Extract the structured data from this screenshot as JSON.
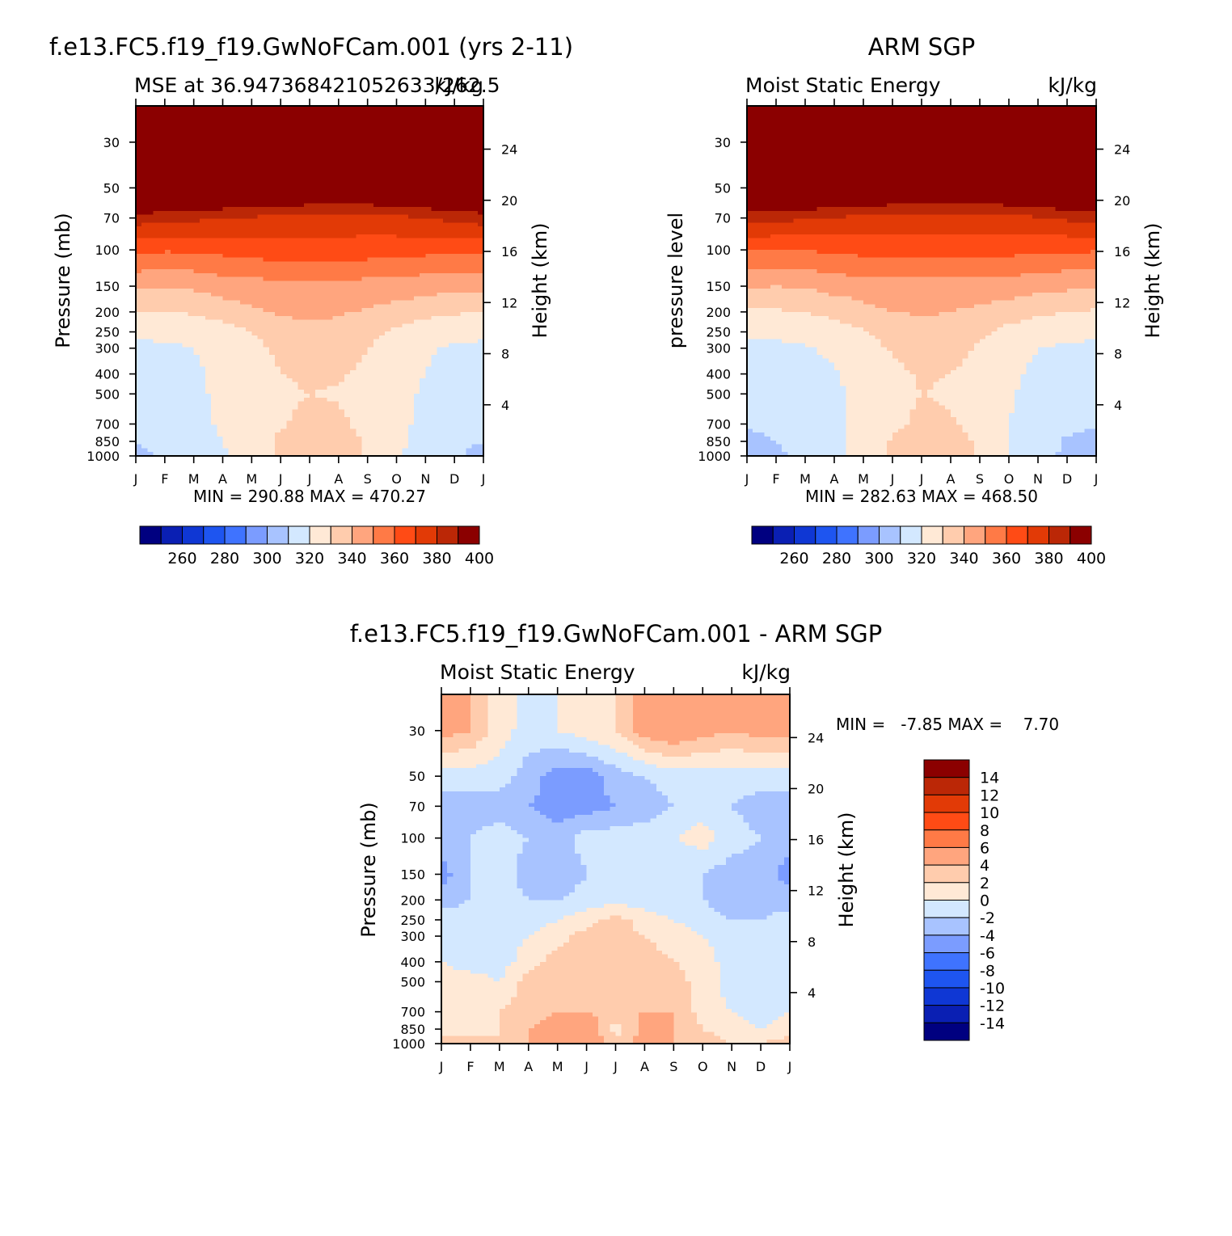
{
  "chart_data": [
    {
      "type": "heatmap",
      "title": "f.e13.FC5.f19_f19.GwNoFCam.001 (yrs 2-11)",
      "subtitle_left": "MSE at 36.947368421052633/262.5",
      "subtitle_right": "kJ/kg",
      "ylabel": "Pressure (mb)",
      "ylabel_right": "Height (km)",
      "x_ticks": [
        "J",
        "F",
        "M",
        "A",
        "M",
        "J",
        "J",
        "A",
        "S",
        "O",
        "N",
        "D",
        "J"
      ],
      "pressure_ticks": [
        30,
        50,
        70,
        100,
        150,
        200,
        250,
        300,
        400,
        500,
        700,
        850,
        1000
      ],
      "height_ticks": [
        24,
        20,
        16,
        12,
        8,
        4
      ],
      "ylim_mb": [
        1000,
        20
      ],
      "stats": "MIN = 290.88 MAX = 470.27",
      "min": 290.88,
      "max": 470.27,
      "levels_min": 250,
      "levels_step": 10,
      "colorbar_labels": [
        "260",
        "280",
        "300",
        "320",
        "340",
        "360",
        "380",
        "400"
      ],
      "grid": false,
      "values_kJkg_by_pressure": {
        "1000": [
          307,
          312,
          316,
          319,
          325,
          332,
          337,
          336,
          329,
          321,
          316,
          311,
          307
        ],
        "850": [
          310,
          314,
          317,
          320,
          325,
          332,
          336,
          335,
          329,
          322,
          317,
          312,
          310
        ],
        "700": [
          313,
          316,
          318,
          321,
          324,
          329,
          333,
          332,
          327,
          322,
          318,
          315,
          313
        ],
        "500": [
          315,
          317,
          319,
          321,
          324,
          328,
          330,
          329,
          326,
          322,
          319,
          317,
          315
        ],
        "400": [
          316,
          317,
          319,
          321,
          325,
          330,
          332,
          331,
          328,
          323,
          320,
          317,
          316
        ],
        "300": [
          318,
          318,
          320,
          323,
          327,
          332,
          335,
          334,
          330,
          325,
          321,
          319,
          318
        ],
        "250": [
          322,
          323,
          324,
          326,
          330,
          335,
          338,
          337,
          333,
          328,
          324,
          323,
          322
        ],
        "200": [
          330,
          330,
          331,
          334,
          338,
          341,
          342,
          341,
          339,
          336,
          333,
          331,
          330
        ],
        "150": [
          342,
          341,
          342,
          345,
          346,
          347,
          347,
          347,
          346,
          346,
          344,
          343,
          342
        ],
        "100": [
          362,
          361,
          361,
          363,
          364,
          366,
          366,
          366,
          365,
          364,
          363,
          362,
          362
        ],
        "70": [
          385,
          384,
          382,
          380,
          379,
          377,
          376,
          376,
          376,
          378,
          380,
          383,
          385
        ],
        "50": [
          418,
          417,
          415,
          413,
          411,
          409,
          408,
          408,
          408,
          409,
          411,
          414,
          418
        ],
        "30": [
          450,
          449,
          448,
          447,
          446,
          445,
          445,
          445,
          445,
          446,
          447,
          448,
          450
        ]
      }
    },
    {
      "type": "heatmap",
      "title": "ARM SGP",
      "subtitle_left": "Moist Static Energy",
      "subtitle_right": "kJ/kg",
      "ylabel": "pressure level",
      "ylabel_right": "Height (km)",
      "x_ticks": [
        "J",
        "F",
        "M",
        "A",
        "M",
        "J",
        "J",
        "A",
        "S",
        "O",
        "N",
        "D",
        "J"
      ],
      "pressure_ticks": [
        30,
        50,
        70,
        100,
        150,
        200,
        250,
        300,
        400,
        500,
        700,
        850,
        1000
      ],
      "height_ticks": [
        24,
        20,
        16,
        12,
        8,
        4
      ],
      "ylim_mb": [
        1000,
        20
      ],
      "stats": "MIN = 282.63 MAX = 468.50",
      "min": 282.63,
      "max": 468.5,
      "levels_min": 250,
      "levels_step": 10,
      "colorbar_labels": [
        "260",
        "280",
        "300",
        "320",
        "340",
        "360",
        "380",
        "400"
      ],
      "grid": false,
      "values_kJkg_by_pressure": {
        "1000": [
          304,
          308,
          313,
          318,
          324,
          332,
          338,
          337,
          329,
          320,
          314,
          308,
          304
        ],
        "850": [
          307,
          310,
          314,
          318,
          323,
          331,
          336,
          335,
          328,
          320,
          314,
          309,
          307
        ],
        "700": [
          311,
          313,
          315,
          318,
          322,
          328,
          332,
          331,
          326,
          320,
          316,
          312,
          311
        ],
        "500": [
          314,
          315,
          317,
          319,
          322,
          327,
          330,
          329,
          325,
          321,
          317,
          315,
          314
        ],
        "400": [
          315,
          316,
          317,
          319,
          323,
          328,
          331,
          330,
          327,
          322,
          318,
          316,
          315
        ],
        "300": [
          318,
          318,
          319,
          322,
          326,
          331,
          334,
          333,
          329,
          324,
          320,
          319,
          318
        ],
        "250": [
          322,
          322,
          323,
          325,
          329,
          334,
          337,
          336,
          332,
          327,
          323,
          322,
          322
        ],
        "200": [
          329,
          329,
          330,
          333,
          337,
          340,
          341,
          340,
          338,
          335,
          332,
          330,
          329
        ],
        "150": [
          341,
          340,
          341,
          344,
          345,
          346,
          346,
          346,
          345,
          345,
          343,
          342,
          341
        ],
        "100": [
          361,
          360,
          360,
          362,
          363,
          365,
          365,
          365,
          364,
          363,
          362,
          361,
          361
        ],
        "70": [
          384,
          383,
          381,
          379,
          378,
          376,
          375,
          375,
          375,
          377,
          379,
          382,
          384
        ],
        "50": [
          416,
          415,
          414,
          412,
          410,
          408,
          407,
          407,
          407,
          408,
          410,
          413,
          416
        ],
        "30": [
          448,
          447,
          446,
          445,
          444,
          443,
          443,
          443,
          443,
          444,
          445,
          446,
          448
        ]
      }
    },
    {
      "type": "heatmap",
      "title": "f.e13.FC5.f19_f19.GwNoFCam.001 - ARM SGP",
      "subtitle_left": "Moist Static Energy",
      "subtitle_right": "kJ/kg",
      "ylabel": "Pressure (mb)",
      "ylabel_right": "Height (km)",
      "x_ticks": [
        "J",
        "F",
        "M",
        "A",
        "M",
        "J",
        "J",
        "A",
        "S",
        "O",
        "N",
        "D",
        "J"
      ],
      "pressure_ticks": [
        30,
        50,
        70,
        100,
        150,
        200,
        250,
        300,
        400,
        500,
        700,
        850,
        1000
      ],
      "height_ticks": [
        24,
        20,
        16,
        12,
        8,
        4
      ],
      "ylim_mb": [
        1000,
        20
      ],
      "stats": "MIN =   -7.85 MAX =    7.70",
      "min": -7.85,
      "max": 7.7,
      "levels_min": -16,
      "levels_step": 2,
      "colorbar_labels": [
        "14",
        "12",
        "10",
        "8",
        "6",
        "4",
        "2",
        "0",
        "-2",
        "-4",
        "-6",
        "-8",
        "-10",
        "-12",
        "-14"
      ],
      "grid": false,
      "values_kJkg_by_pressure": {
        "1000": [
          1,
          1,
          0,
          2,
          3,
          4,
          1,
          3,
          2,
          1,
          0,
          0,
          1
        ],
        "850": [
          -1,
          -1,
          0,
          2,
          3,
          4,
          -1,
          3,
          2,
          0,
          -1,
          -2,
          -1
        ],
        "700": [
          -1,
          -1,
          0,
          1,
          2,
          2,
          1,
          2,
          2,
          -1,
          -2,
          -3,
          -2
        ],
        "500": [
          -1,
          -1,
          -2,
          1,
          1,
          2,
          1,
          1,
          1,
          -1,
          -3,
          -3,
          -3
        ],
        "400": [
          -2,
          -3,
          -3,
          -1,
          1,
          1,
          1,
          1,
          0,
          -1,
          -3,
          -3,
          -3
        ],
        "300": [
          -3,
          -3,
          -3,
          -2,
          -1,
          1,
          1,
          0,
          -1,
          -2,
          -3,
          -3,
          -3
        ],
        "250": [
          -3,
          -3,
          -3,
          -3,
          -2,
          -1,
          1,
          -1,
          -2,
          -3,
          -4,
          -4,
          -3
        ],
        "200": [
          -5,
          -4,
          -3,
          -4,
          -4,
          -3,
          -3,
          -3,
          -4,
          -4,
          -5,
          -5,
          -5
        ],
        "150": [
          -7,
          -4,
          -3,
          -5,
          -6,
          -4,
          -3,
          -3,
          -4,
          -4,
          -5,
          -5,
          -7
        ],
        "100": [
          -5,
          -4,
          -3,
          -4,
          -5,
          -3,
          -3,
          -3,
          -2,
          -1,
          -3,
          -4,
          -5
        ],
        "70": [
          -5,
          -5,
          -5,
          -6,
          -7,
          -7,
          -6,
          -5,
          -4,
          -3,
          -4,
          -5,
          -5
        ],
        "50": [
          -3,
          -3,
          -3,
          -5,
          -7,
          -7,
          -5,
          -4,
          -3,
          -3,
          -3,
          -3,
          -3
        ],
        "30": [
          3,
          2,
          -1,
          -3,
          -2,
          -1,
          0,
          3,
          4,
          3,
          2,
          3,
          3
        ]
      }
    }
  ],
  "colors": {
    "palette": [
      "#000080",
      "#0a1fb3",
      "#0f37d4",
      "#1e55f0",
      "#3f73ff",
      "#7b9cff",
      "#a8c3ff",
      "#d3e8ff",
      "#ffe9d6",
      "#ffccad",
      "#ffa57e",
      "#ff7a46",
      "#ff4b15",
      "#e23a06",
      "#bb2706",
      "#8b0000"
    ],
    "axis": "#000000",
    "background": "#ffffff"
  }
}
